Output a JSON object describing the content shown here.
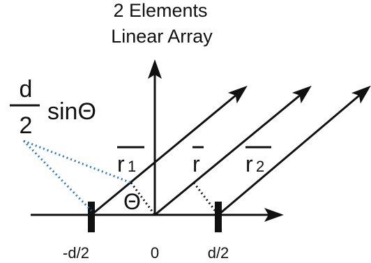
{
  "diagram": {
    "title_line_1": "2 Elements",
    "title_line_2": "Linear Array",
    "path_difference_numerator": "d",
    "path_difference_denominator": "2",
    "path_difference_suffix": "sinΘ",
    "r1_base": "r",
    "r1_subscript": "1",
    "r_label": "r",
    "r2_base": "r",
    "r2_subscript": "2",
    "theta_label": "Θ",
    "position_left": "-d/2",
    "position_origin": "0",
    "position_right": "d/2"
  },
  "colors": {
    "line": "#111111",
    "dotted_blue": "#2b7bc0",
    "text": "#111111",
    "background": "#ffffff"
  },
  "icons": {
    "arrow": "arrowhead",
    "element": "element-bar"
  }
}
